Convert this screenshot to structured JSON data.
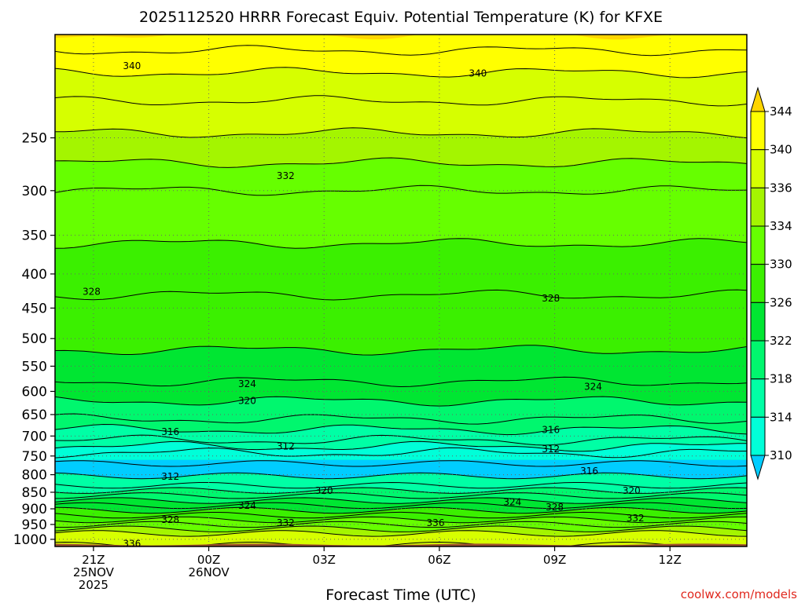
{
  "chart_data": {
    "type": "heatmap",
    "title": "2025112520 HRRR Forecast Equiv. Potential Temperature (K) for KFXE",
    "xlabel": "Forecast Time (UTC)",
    "ylabel": "",
    "x_ticks": [
      {
        "hour": 0,
        "lines": [
          "21Z",
          "25NOV",
          "2025"
        ]
      },
      {
        "hour": 3,
        "lines": [
          "00Z",
          "26NOV"
        ]
      },
      {
        "hour": 6,
        "lines": [
          "03Z"
        ]
      },
      {
        "hour": 9,
        "lines": [
          "06Z"
        ]
      },
      {
        "hour": 12,
        "lines": [
          "09Z"
        ]
      },
      {
        "hour": 15,
        "lines": [
          "12Z"
        ]
      }
    ],
    "xlim": [
      -1,
      17
    ],
    "y_ticks": [
      250,
      300,
      350,
      400,
      450,
      500,
      550,
      600,
      650,
      700,
      750,
      800,
      850,
      900,
      950,
      1000
    ],
    "ylim": [
      1025,
      175
    ],
    "y_scale": "log-pressure",
    "colorbar": {
      "levels": [
        310,
        314,
        318,
        322,
        326,
        330,
        334,
        336,
        340,
        344
      ],
      "colors": [
        "#00cdff",
        "#00ffd8",
        "#00ffa5",
        "#00f76e",
        "#00e632",
        "#3bf000",
        "#66ff00",
        "#a4f500",
        "#d6ff00",
        "#ffff00",
        "#ffd500"
      ]
    },
    "profile": [
      {
        "p": 175,
        "t": 344
      },
      {
        "p": 190,
        "t": 341
      },
      {
        "p": 220,
        "t": 338
      },
      {
        "p": 260,
        "t": 335
      },
      {
        "p": 300,
        "t": 332
      },
      {
        "p": 360,
        "t": 330
      },
      {
        "p": 430,
        "t": 328
      },
      {
        "p": 520,
        "t": 326
      },
      {
        "p": 580,
        "t": 324
      },
      {
        "p": 620,
        "t": 322
      },
      {
        "p": 660,
        "t": 320
      },
      {
        "p": 710,
        "t": 316
      },
      {
        "p": 750,
        "t": 311
      },
      {
        "p": 790,
        "t": 313
      },
      {
        "p": 830,
        "t": 316
      },
      {
        "p": 860,
        "t": 320
      },
      {
        "p": 890,
        "t": 324
      },
      {
        "p": 920,
        "t": 328
      },
      {
        "p": 950,
        "t": 332
      },
      {
        "p": 980,
        "t": 336
      },
      {
        "p": 1020,
        "t": 338
      }
    ],
    "contour_labels": [
      {
        "value": "340",
        "hour": 1.0,
        "p": 195
      },
      {
        "value": "340",
        "hour": 10.0,
        "p": 200
      },
      {
        "value": "332",
        "hour": 5.0,
        "p": 285
      },
      {
        "value": "328",
        "hour": -0.05,
        "p": 425
      },
      {
        "value": "328",
        "hour": 11.9,
        "p": 435
      },
      {
        "value": "324",
        "hour": 4.0,
        "p": 585
      },
      {
        "value": "324",
        "hour": 13.0,
        "p": 590
      },
      {
        "value": "320",
        "hour": 4.0,
        "p": 620
      },
      {
        "value": "316",
        "hour": 2.0,
        "p": 690
      },
      {
        "value": "316",
        "hour": 11.9,
        "p": 685
      },
      {
        "value": "312",
        "hour": 5.0,
        "p": 725
      },
      {
        "value": "312",
        "hour": 11.9,
        "p": 732
      },
      {
        "value": "312",
        "hour": 2.0,
        "p": 805
      },
      {
        "value": "316",
        "hour": 12.9,
        "p": 790
      },
      {
        "value": "320",
        "hour": 6.0,
        "p": 845
      },
      {
        "value": "320",
        "hour": 14.0,
        "p": 845
      },
      {
        "value": "324",
        "hour": 4.0,
        "p": 890
      },
      {
        "value": "324",
        "hour": 10.9,
        "p": 880
      },
      {
        "value": "328",
        "hour": 2.0,
        "p": 935
      },
      {
        "value": "328",
        "hour": 12.0,
        "p": 895
      },
      {
        "value": "332",
        "hour": 5.0,
        "p": 945
      },
      {
        "value": "332",
        "hour": 14.1,
        "p": 930
      },
      {
        "value": "336",
        "hour": 8.9,
        "p": 945
      },
      {
        "value": "336",
        "hour": 1.0,
        "p": 1015
      }
    ]
  },
  "credit": "coolwx.com/models",
  "colors": {
    "ground": "#a0522d",
    "credit": "#e0281e",
    "grid": "#666666"
  }
}
